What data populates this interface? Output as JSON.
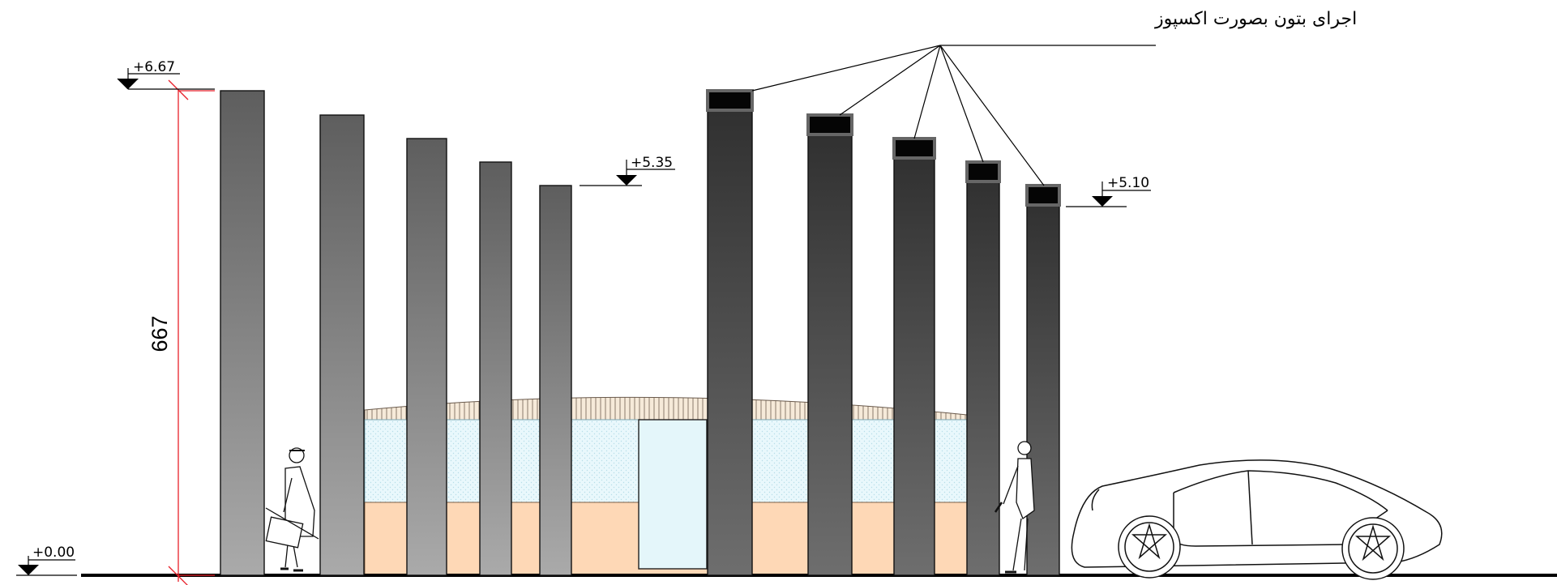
{
  "elevation_marks": {
    "top_left": "+6.67",
    "mid_left": "+5.35",
    "right": "+5.10",
    "ground": "+0.00"
  },
  "dimension": {
    "height_label": "667"
  },
  "annotation": {
    "exposed_concrete": "اجرای بتون بصورت اکسپوز"
  },
  "colors": {
    "glass": "#e6f6fb",
    "wall": "#fed8b6",
    "column_light": "#9a9a9a",
    "column_dark": "#3a3a3a",
    "dimension_line": "#e8202a"
  }
}
